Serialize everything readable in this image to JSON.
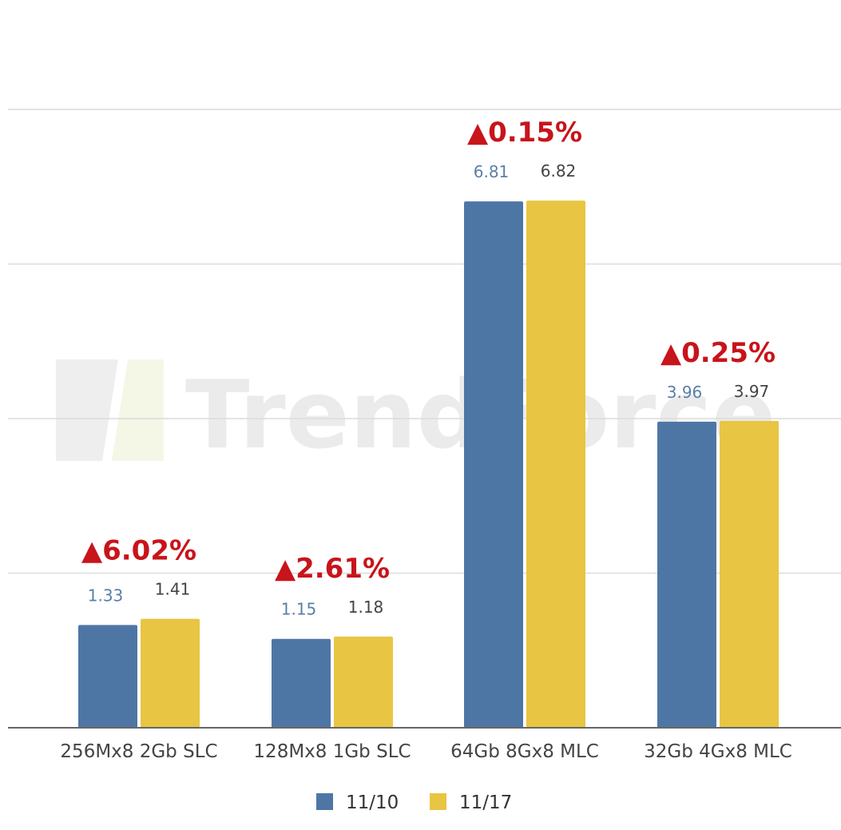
{
  "chart_data": {
    "type": "bar",
    "categories": [
      "256Mx8 2Gb SLC",
      "128Mx8 1Gb SLC",
      "64Gb 8Gx8 MLC",
      "32Gb 4Gx8 MLC"
    ],
    "series": [
      {
        "name": "11/10",
        "values": [
          1.33,
          1.15,
          6.81,
          3.96
        ],
        "color": "#4e76a5"
      },
      {
        "name": "11/17",
        "values": [
          1.41,
          1.18,
          6.82,
          3.97
        ],
        "color": "#e8c543"
      }
    ],
    "value_labels": {
      "11/10": [
        "1.33",
        "1.15",
        "6.81",
        "3.96"
      ],
      "11/17": [
        "1.41",
        "1.18",
        "6.82",
        "3.97"
      ]
    },
    "change_labels": [
      "▲6.02%",
      "▲2.61%",
      "▲0.15%",
      "▲0.25%"
    ],
    "change_color": "#c8141b",
    "ylim": [
      0,
      8
    ],
    "gridlines": [
      2,
      4,
      6,
      8
    ],
    "grid": true,
    "legend_position": "bottom-center",
    "watermark": "TrendForce"
  }
}
